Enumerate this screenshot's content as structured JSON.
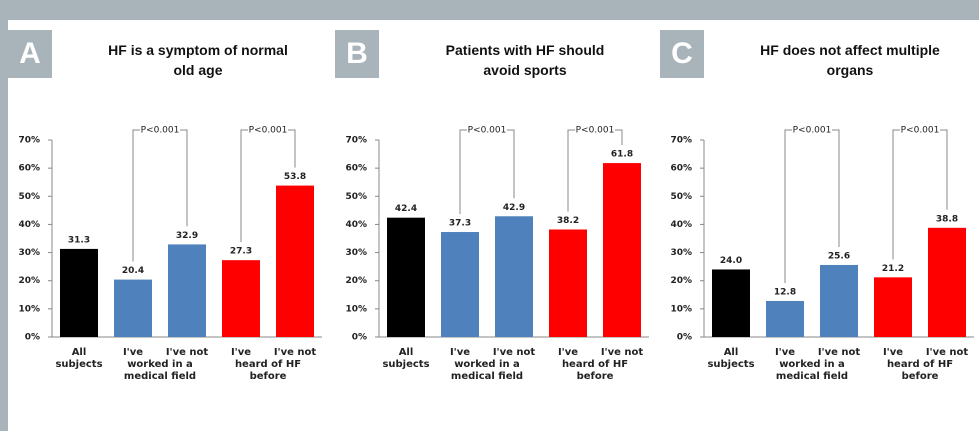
{
  "chart_data": [
    {
      "type": "bar",
      "panel_label": "A",
      "title": "HF is a symptom of normal old age",
      "categories": [
        "All subjects",
        "I've",
        "I've not",
        "I've",
        "I've not"
      ],
      "groups": [
        "worked in a medical field",
        "heard of HF before"
      ],
      "values": [
        31.3,
        20.4,
        32.9,
        27.3,
        53.8
      ],
      "colors": [
        "#000000",
        "#4f81bd",
        "#4f81bd",
        "#ff0000",
        "#ff0000"
      ],
      "significance": [
        "P<0.001",
        "P<0.001"
      ],
      "ylim": [
        0,
        70
      ],
      "yticks": [
        {
          "value": 0,
          "label": "0%"
        },
        {
          "value": 10,
          "label": "10%"
        },
        {
          "value": 20,
          "label": "20%"
        },
        {
          "value": 30,
          "label": "30%"
        },
        {
          "value": 40,
          "label": "40%"
        },
        {
          "value": 50,
          "label": "50%"
        },
        {
          "value": 60,
          "label": "60%"
        },
        {
          "value": 70,
          "label": "70%"
        }
      ]
    },
    {
      "type": "bar",
      "panel_label": "B",
      "title": "Patients with HF should avoid sports",
      "categories": [
        "All subjects",
        "I've",
        "I've not",
        "I've",
        "I've not"
      ],
      "groups": [
        "worked in a medical field",
        "heard of HF before"
      ],
      "values": [
        42.4,
        37.3,
        42.9,
        38.2,
        61.8
      ],
      "colors": [
        "#000000",
        "#4f81bd",
        "#4f81bd",
        "#ff0000",
        "#ff0000"
      ],
      "significance": [
        "P<0.001",
        "P<0.001"
      ],
      "ylim": [
        0,
        70
      ],
      "yticks": [
        {
          "value": 0,
          "label": "0%"
        },
        {
          "value": 10,
          "label": "10%"
        },
        {
          "value": 20,
          "label": "20%"
        },
        {
          "value": 30,
          "label": "30%"
        },
        {
          "value": 40,
          "label": "40%"
        },
        {
          "value": 50,
          "label": "50%"
        },
        {
          "value": 60,
          "label": "60%"
        },
        {
          "value": 70,
          "label": "70%"
        }
      ]
    },
    {
      "type": "bar",
      "panel_label": "C",
      "title": "HF does not affect multiple organs",
      "categories": [
        "All subjects",
        "I've",
        "I've not",
        "I've",
        "I've not"
      ],
      "groups": [
        "worked in a medical field",
        "heard of HF before"
      ],
      "values": [
        24,
        12.8,
        25.6,
        21.2,
        38.8
      ],
      "value_labels": [
        "24.0",
        "12.8",
        "25.6",
        "21.2",
        "38.8"
      ],
      "colors": [
        "#000000",
        "#4f81bd",
        "#4f81bd",
        "#ff0000",
        "#ff0000"
      ],
      "significance": [
        "P<0.001",
        "P<0.001"
      ],
      "ylim": [
        0,
        70
      ],
      "yticks": [
        {
          "value": 0,
          "label": "0%"
        },
        {
          "value": 10,
          "label": "10%"
        },
        {
          "value": 20,
          "label": "20%"
        },
        {
          "value": 30,
          "label": "30%"
        },
        {
          "value": 40,
          "label": "40%"
        },
        {
          "value": 50,
          "label": "50%"
        },
        {
          "value": 60,
          "label": "60%"
        },
        {
          "value": 70,
          "label": "70%"
        }
      ]
    }
  ]
}
